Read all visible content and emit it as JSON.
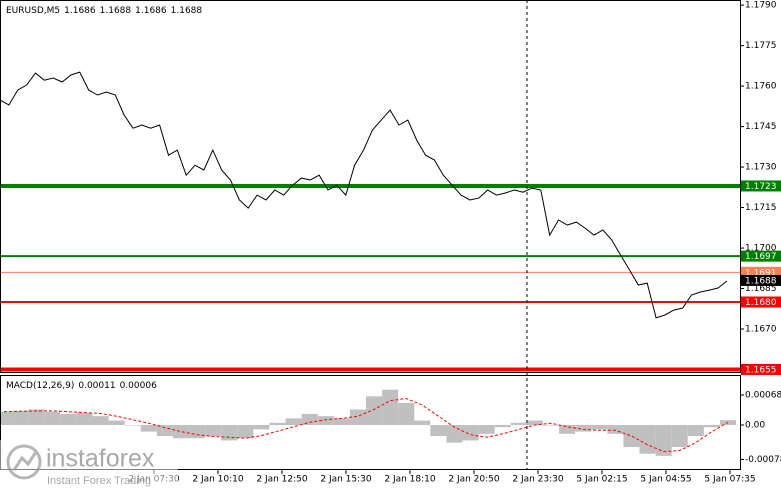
{
  "chart_data": [
    {
      "type": "line",
      "title": "EURUSD,M5",
      "ohlc": [
        1.1686,
        1.1688,
        1.1686,
        1.1688
      ],
      "ylim": [
        1.16537,
        1.17919
      ],
      "yticks": [
        {
          "value": 1.179,
          "label": "1.1790"
        },
        1.1775,
        {
          "value": 1.176,
          "label": "1.1760"
        },
        1.1745,
        {
          "value": 1.173,
          "label": "1.1730"
        },
        1.1715,
        {
          "value": 1.17,
          "label": "1.1700"
        },
        1.1685,
        {
          "value": 1.167,
          "label": "1.1670"
        }
      ],
      "series": [
        {
          "color": "#000000",
          "values": [
            1.17548,
            1.1753,
            1.17585,
            1.17604,
            1.17648,
            1.17622,
            1.1763,
            1.17615,
            1.17641,
            1.17652,
            1.17585,
            1.17567,
            1.17578,
            1.17567,
            1.17493,
            1.17444,
            1.17456,
            1.17444,
            1.17456,
            1.17344,
            1.17363,
            1.1727,
            1.17307,
            1.17289,
            1.17363,
            1.17289,
            1.17252,
            1.17178,
            1.17148,
            1.17196,
            1.17178,
            1.17215,
            1.17196,
            1.17233,
            1.17259,
            1.17252,
            1.1727,
            1.17215,
            1.17233,
            1.17196,
            1.17307,
            1.17363,
            1.17437,
            1.17474,
            1.17511,
            1.17456,
            1.17474,
            1.174,
            1.17344,
            1.17326,
            1.1727,
            1.17233,
            1.17196,
            1.17178,
            1.17185,
            1.17215,
            1.17196,
            1.17204,
            1.17215,
            1.17207,
            1.17222,
            1.17215,
            1.17048,
            1.17104,
            1.17085,
            1.17096,
            1.17074,
            1.17048,
            1.17067,
            1.1703,
            1.16974,
            1.16919,
            1.16863,
            1.1687,
            1.16741,
            1.16752,
            1.1677,
            1.16778,
            1.16826,
            1.16837,
            1.16844,
            1.16852,
            1.16878
          ]
        }
      ],
      "levels": [
        {
          "value": 1.1723,
          "label": "1.1723",
          "color": "#008000",
          "width": 4
        },
        {
          "value": 1.1697,
          "label": "1.1697",
          "color": "#008000",
          "width": 2
        },
        {
          "value": 1.1691,
          "label": "1.1691",
          "color": "#ff7f50",
          "width": 1
        },
        {
          "value": 1.168,
          "label": "1.1680",
          "color": "#ff0000",
          "width": 2
        },
        {
          "value": 1.1655,
          "label": "1.1655",
          "color": "#ff0000",
          "width": 4
        }
      ],
      "current_price": 1.1688
    },
    {
      "type": "macd",
      "title": "MACD(12,26,9)",
      "macd_value": 0.00011,
      "signal_value": 6e-05,
      "ylim": [
        -0.00102,
        0.00111
      ],
      "yticks": [
        0.00068,
        {
          "value": 0,
          "label": "0.00"
        },
        -0.00078
      ],
      "histogram": {
        "color": "#c0c0c0",
        "values": [
          0.0003,
          0.00032,
          0.00035,
          0.0003,
          0.00025,
          0.00028,
          0.0002,
          0.0001,
          0.0,
          -0.00015,
          -0.00025,
          -0.0003,
          -0.0003,
          -0.00025,
          -0.00035,
          -0.0003,
          -0.0001,
          5e-05,
          0.00015,
          0.00025,
          0.0002,
          0.00015,
          0.00035,
          0.00065,
          0.0008,
          0.0005,
          0.0001,
          -0.00025,
          -0.0004,
          -0.00035,
          -0.0002,
          -5e-05,
          5e-05,
          0.0001,
          0.0,
          -0.0002,
          -0.00015,
          -0.0001,
          -0.0002,
          -0.0005,
          -0.00065,
          -0.0007,
          -0.0005,
          -0.00025,
          -5e-05,
          0.00011
        ]
      },
      "signal": {
        "color": "#ff0000",
        "values": [
          0.0003,
          0.00031,
          0.00032,
          0.00032,
          0.0003,
          0.00028,
          0.00026,
          0.0002,
          0.00012,
          4e-05,
          -6e-05,
          -0.00015,
          -0.00022,
          -0.00026,
          -0.00028,
          -0.0003,
          -0.00024,
          -0.00014,
          -4e-05,
          6e-05,
          0.00012,
          0.00015,
          0.0002,
          0.00035,
          0.00055,
          0.0006,
          0.00045,
          0.0002,
          -5e-05,
          -0.00022,
          -0.00028,
          -0.0002,
          -0.0001,
          0.0,
          4e-05,
          -4e-05,
          -0.0001,
          -0.00012,
          -0.00012,
          -0.00025,
          -0.00045,
          -0.0006,
          -0.00058,
          -0.0004,
          -0.00015,
          6e-05
        ]
      },
      "xtick_labels": [
        "2 Jan 07:30",
        "2 Jan 10:10",
        "2 Jan 12:50",
        "2 Jan 15:30",
        "2 Jan 18:10",
        "2 Jan 20:50",
        "2 Jan 23:30",
        "5 Jan 02:15",
        "5 Jan 04:55",
        "5 Jan 07:35"
      ]
    }
  ],
  "watermark": {
    "brand": "instaforex",
    "tagline": "Instant Forex Trading"
  }
}
